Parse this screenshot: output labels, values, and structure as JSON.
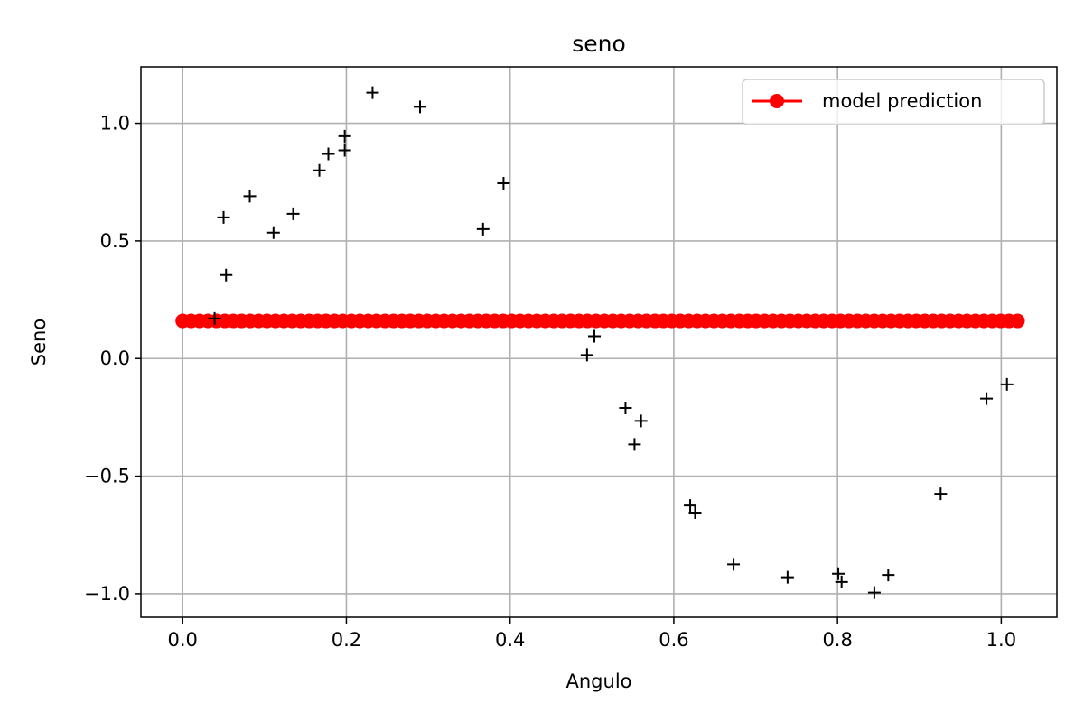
{
  "chart_data": {
    "type": "scatter",
    "title": "seno",
    "xlabel": "Angulo",
    "ylabel": "Seno",
    "xlim": [
      -0.051,
      1.068
    ],
    "ylim": [
      -1.1,
      1.24
    ],
    "xticks": [
      0.0,
      0.2,
      0.4,
      0.6,
      0.8,
      1.0
    ],
    "xtick_labels": [
      "0.0",
      "0.2",
      "0.4",
      "0.6",
      "0.8",
      "1.0"
    ],
    "yticks": [
      -1.0,
      -0.5,
      0.0,
      0.5,
      1.0
    ],
    "ytick_labels": [
      "−1.0",
      "−0.5",
      "0.0",
      "0.5",
      "1.0"
    ],
    "grid": true,
    "legend": {
      "position": "top-right",
      "entries": [
        "model prediction"
      ]
    },
    "series": [
      {
        "name": "model prediction",
        "style": "line-markers",
        "color": "#ff0000",
        "x_start": 0.0,
        "x_end": 1.02,
        "n_points": 100,
        "y_constant": 0.16
      },
      {
        "style": "plus-markers",
        "color": "#000000",
        "points": [
          [
            0.039,
            0.17
          ],
          [
            0.05,
            0.6
          ],
          [
            0.053,
            0.355
          ],
          [
            0.082,
            0.69
          ],
          [
            0.111,
            0.535
          ],
          [
            0.135,
            0.615
          ],
          [
            0.167,
            0.8
          ],
          [
            0.178,
            0.87
          ],
          [
            0.198,
            0.885
          ],
          [
            0.198,
            0.945
          ],
          [
            0.232,
            1.13
          ],
          [
            0.29,
            1.07
          ],
          [
            0.367,
            0.55
          ],
          [
            0.392,
            0.745
          ],
          [
            0.494,
            0.015
          ],
          [
            0.503,
            0.095
          ],
          [
            0.541,
            -0.21
          ],
          [
            0.552,
            -0.365
          ],
          [
            0.56,
            -0.265
          ],
          [
            0.62,
            -0.625
          ],
          [
            0.626,
            -0.655
          ],
          [
            0.673,
            -0.875
          ],
          [
            0.739,
            -0.93
          ],
          [
            0.801,
            -0.915
          ],
          [
            0.805,
            -0.95
          ],
          [
            0.845,
            -0.995
          ],
          [
            0.862,
            -0.92
          ],
          [
            0.926,
            -0.575
          ],
          [
            0.982,
            -0.17
          ],
          [
            1.007,
            -0.11
          ]
        ]
      }
    ]
  }
}
